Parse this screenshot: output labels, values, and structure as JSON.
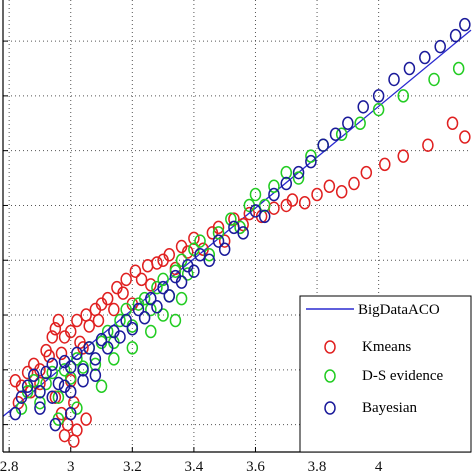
{
  "chart_data": {
    "type": "scatter",
    "title": "",
    "xlabel": "",
    "ylabel": "",
    "xlim": [
      2.78,
      4.3
    ],
    "ylim": [
      2.7,
      4.35
    ],
    "grid": true,
    "grid_style": "dotted",
    "legend_position": "bottom-right",
    "x_ticks": [
      {
        "value": 2.8,
        "label": "2.8"
      },
      {
        "value": 3.0,
        "label": "3"
      },
      {
        "value": 3.2,
        "label": "3.2"
      },
      {
        "value": 3.4,
        "label": "3.4"
      },
      {
        "value": 3.6,
        "label": "3.6"
      },
      {
        "value": 3.8,
        "label": "3.8"
      },
      {
        "value": 4.0,
        "label": "4"
      }
    ],
    "y_gridlines": [
      2.8,
      3.0,
      3.2,
      3.4,
      3.6,
      3.8,
      4.0,
      4.2
    ],
    "series": [
      {
        "name": "BigDataACO",
        "kind": "line",
        "color": "#2a2ad0",
        "points": [
          [
            2.78,
            2.83
          ],
          [
            4.3,
            4.24
          ]
        ]
      },
      {
        "name": "Kmeans",
        "kind": "marker",
        "marker": "circle",
        "color": "#e02020",
        "points": [
          [
            2.82,
            2.96
          ],
          [
            2.84,
            2.94
          ],
          [
            2.86,
            2.99
          ],
          [
            2.88,
            3.02
          ],
          [
            2.87,
            2.92
          ],
          [
            2.9,
            3.0
          ],
          [
            2.92,
            3.07
          ],
          [
            2.94,
            3.12
          ],
          [
            2.95,
            3.15
          ],
          [
            2.93,
            3.05
          ],
          [
            2.96,
            3.18
          ],
          [
            2.97,
            3.06
          ],
          [
            2.98,
            3.12
          ],
          [
            3.0,
            3.14
          ],
          [
            3.02,
            3.18
          ],
          [
            3.03,
            3.1
          ],
          [
            3.04,
            3.08
          ],
          [
            3.05,
            3.2
          ],
          [
            3.06,
            3.16
          ],
          [
            3.08,
            3.22
          ],
          [
            3.09,
            3.18
          ],
          [
            3.1,
            3.24
          ],
          [
            3.12,
            3.26
          ],
          [
            3.14,
            3.22
          ],
          [
            3.15,
            3.3
          ],
          [
            3.17,
            3.28
          ],
          [
            3.18,
            3.33
          ],
          [
            3.2,
            3.24
          ],
          [
            3.21,
            3.36
          ],
          [
            3.23,
            3.33
          ],
          [
            3.25,
            3.38
          ],
          [
            3.26,
            3.31
          ],
          [
            3.28,
            3.39
          ],
          [
            3.3,
            3.4
          ],
          [
            3.32,
            3.42
          ],
          [
            3.34,
            3.37
          ],
          [
            3.36,
            3.45
          ],
          [
            3.38,
            3.43
          ],
          [
            3.4,
            3.48
          ],
          [
            3.43,
            3.44
          ],
          [
            3.46,
            3.5
          ],
          [
            3.48,
            3.52
          ],
          [
            3.5,
            3.47
          ],
          [
            3.53,
            3.55
          ],
          [
            3.56,
            3.53
          ],
          [
            3.58,
            3.57
          ],
          [
            3.62,
            3.56
          ],
          [
            3.66,
            3.59
          ],
          [
            3.7,
            3.6
          ],
          [
            3.72,
            3.62
          ],
          [
            3.76,
            3.61
          ],
          [
            3.8,
            3.64
          ],
          [
            3.84,
            3.67
          ],
          [
            3.88,
            3.65
          ],
          [
            3.92,
            3.68
          ],
          [
            3.96,
            3.72
          ],
          [
            4.02,
            3.75
          ],
          [
            4.08,
            3.78
          ],
          [
            4.16,
            3.82
          ],
          [
            4.24,
            3.9
          ],
          [
            4.28,
            3.85
          ],
          [
            2.83,
            2.88
          ],
          [
            2.9,
            2.95
          ],
          [
            2.95,
            2.9
          ],
          [
            3.0,
            2.96
          ],
          [
            2.97,
            2.84
          ],
          [
            3.01,
            2.88
          ],
          [
            2.99,
            2.8
          ],
          [
            3.02,
            2.78
          ],
          [
            2.98,
            2.76
          ],
          [
            3.05,
            2.82
          ],
          [
            3.01,
            2.74
          ]
        ]
      },
      {
        "name": "D-S evidence",
        "kind": "marker",
        "marker": "circle",
        "color": "#22cc22",
        "points": [
          [
            2.84,
            2.86
          ],
          [
            2.86,
            2.92
          ],
          [
            2.88,
            2.96
          ],
          [
            2.9,
            2.88
          ],
          [
            2.92,
            2.95
          ],
          [
            2.94,
            2.99
          ],
          [
            2.96,
            2.9
          ],
          [
            2.98,
            3.0
          ],
          [
            3.0,
            2.97
          ],
          [
            3.02,
            3.04
          ],
          [
            3.04,
            3.01
          ],
          [
            3.06,
            3.08
          ],
          [
            3.08,
            3.02
          ],
          [
            3.1,
            3.1
          ],
          [
            3.12,
            3.14
          ],
          [
            3.14,
            3.1
          ],
          [
            3.16,
            3.18
          ],
          [
            3.18,
            3.22
          ],
          [
            3.2,
            3.16
          ],
          [
            3.22,
            3.24
          ],
          [
            3.24,
            3.26
          ],
          [
            3.26,
            3.22
          ],
          [
            3.28,
            3.3
          ],
          [
            3.3,
            3.33
          ],
          [
            3.32,
            3.27
          ],
          [
            3.34,
            3.36
          ],
          [
            3.36,
            3.4
          ],
          [
            3.38,
            3.35
          ],
          [
            3.4,
            3.44
          ],
          [
            3.42,
            3.47
          ],
          [
            3.45,
            3.42
          ],
          [
            3.48,
            3.5
          ],
          [
            3.52,
            3.55
          ],
          [
            3.55,
            3.52
          ],
          [
            3.58,
            3.6
          ],
          [
            3.6,
            3.64
          ],
          [
            3.63,
            3.6
          ],
          [
            3.66,
            3.67
          ],
          [
            3.7,
            3.72
          ],
          [
            3.74,
            3.7
          ],
          [
            3.78,
            3.78
          ],
          [
            3.82,
            3.82
          ],
          [
            3.88,
            3.86
          ],
          [
            3.94,
            3.9
          ],
          [
            4.0,
            3.95
          ],
          [
            4.08,
            4.0
          ],
          [
            4.18,
            4.06
          ],
          [
            4.26,
            4.1
          ],
          [
            2.96,
            2.82
          ],
          [
            3.02,
            2.86
          ],
          [
            3.1,
            2.94
          ],
          [
            3.14,
            3.04
          ],
          [
            3.2,
            3.08
          ],
          [
            3.26,
            3.14
          ],
          [
            3.3,
            3.2
          ],
          [
            3.36,
            3.26
          ],
          [
            3.34,
            3.18
          ]
        ]
      },
      {
        "name": "Bayesian",
        "kind": "marker",
        "marker": "circle",
        "color": "#1a1a9a",
        "points": [
          [
            2.82,
            2.84
          ],
          [
            2.84,
            2.9
          ],
          [
            2.86,
            2.94
          ],
          [
            2.88,
            2.98
          ],
          [
            2.9,
            2.92
          ],
          [
            2.92,
            2.99
          ],
          [
            2.94,
            3.02
          ],
          [
            2.96,
            2.95
          ],
          [
            2.98,
            3.03
          ],
          [
            3.0,
            3.01
          ],
          [
            3.02,
            3.06
          ],
          [
            3.04,
            3.0
          ],
          [
            3.06,
            3.08
          ],
          [
            3.08,
            3.04
          ],
          [
            3.1,
            3.11
          ],
          [
            3.12,
            3.08
          ],
          [
            3.14,
            3.14
          ],
          [
            3.16,
            3.12
          ],
          [
            3.18,
            3.18
          ],
          [
            3.2,
            3.15
          ],
          [
            3.22,
            3.22
          ],
          [
            3.24,
            3.19
          ],
          [
            3.26,
            3.26
          ],
          [
            3.28,
            3.23
          ],
          [
            3.3,
            3.3
          ],
          [
            3.32,
            3.27
          ],
          [
            3.34,
            3.34
          ],
          [
            3.36,
            3.32
          ],
          [
            3.38,
            3.38
          ],
          [
            3.4,
            3.36
          ],
          [
            3.42,
            3.42
          ],
          [
            3.45,
            3.4
          ],
          [
            3.48,
            3.47
          ],
          [
            3.5,
            3.44
          ],
          [
            3.53,
            3.52
          ],
          [
            3.56,
            3.5
          ],
          [
            3.6,
            3.58
          ],
          [
            3.63,
            3.56
          ],
          [
            3.66,
            3.64
          ],
          [
            3.7,
            3.68
          ],
          [
            3.74,
            3.72
          ],
          [
            3.78,
            3.76
          ],
          [
            3.82,
            3.82
          ],
          [
            3.86,
            3.86
          ],
          [
            3.9,
            3.9
          ],
          [
            3.95,
            3.96
          ],
          [
            4.0,
            4.0
          ],
          [
            4.05,
            4.06
          ],
          [
            4.1,
            4.1
          ],
          [
            4.15,
            4.14
          ],
          [
            4.2,
            4.18
          ],
          [
            4.25,
            4.22
          ],
          [
            4.28,
            4.26
          ],
          [
            2.9,
            2.86
          ],
          [
            2.94,
            2.9
          ],
          [
            2.98,
            2.94
          ],
          [
            3.0,
            2.92
          ],
          [
            3.04,
            2.96
          ],
          [
            3.08,
            2.98
          ],
          [
            2.95,
            2.8
          ],
          [
            3.0,
            2.84
          ]
        ]
      }
    ]
  }
}
